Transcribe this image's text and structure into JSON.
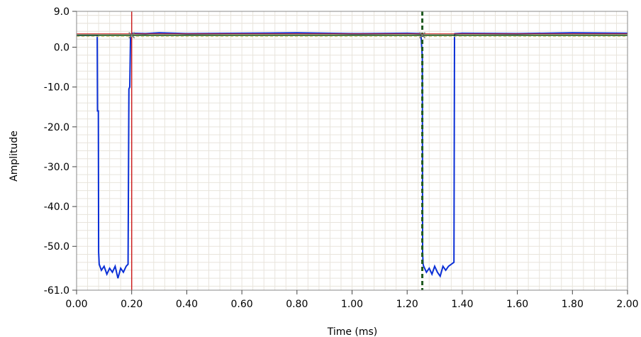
{
  "chart_data": {
    "type": "line",
    "title": "",
    "xlabel": "Time (ms)",
    "ylabel": "Amplitude",
    "xlim": [
      0.0,
      2.0
    ],
    "ylim": [
      -61.0,
      9.0
    ],
    "x_ticks": [
      "0.00",
      "0.20",
      "0.40",
      "0.60",
      "0.80",
      "1.00",
      "1.20",
      "1.40",
      "1.60",
      "1.80",
      "2.00"
    ],
    "x_tick_values": [
      0.0,
      0.2,
      0.4,
      0.6,
      0.8,
      1.0,
      1.2,
      1.4,
      1.6,
      1.8,
      2.0
    ],
    "y_ticks": [
      "9.0",
      "0.0",
      "-10.0",
      "-20.0",
      "-30.0",
      "-40.0",
      "-50.0",
      "-61.0"
    ],
    "y_tick_values": [
      9.0,
      0.0,
      -10.0,
      -20.0,
      -30.0,
      -40.0,
      -50.0,
      -61.0
    ],
    "grid": true,
    "grid_color": "#e8e4dc",
    "background": "#ffffff",
    "series": [
      {
        "color": "#0a2fd6",
        "x": [
          0.0,
          0.075,
          0.076,
          0.079,
          0.08,
          0.082,
          0.09,
          0.1,
          0.11,
          0.12,
          0.13,
          0.14,
          0.15,
          0.16,
          0.17,
          0.18,
          0.187,
          0.19,
          0.193,
          0.196,
          0.2,
          0.25,
          0.3,
          0.4,
          0.6,
          0.8,
          1.0,
          1.2,
          1.25,
          1.255,
          1.256,
          1.258,
          1.26,
          1.27,
          1.28,
          1.29,
          1.3,
          1.31,
          1.32,
          1.33,
          1.34,
          1.35,
          1.36,
          1.37,
          1.372,
          1.373,
          1.4,
          1.6,
          1.8,
          2.0
        ],
        "y": [
          3.0,
          3.0,
          -16.0,
          -16.0,
          -51.5,
          -54.5,
          -56.0,
          -55.0,
          -57.0,
          -55.5,
          -56.5,
          -55.0,
          -58.0,
          -55.5,
          -56.5,
          -55.0,
          -54.5,
          -10.5,
          -10.0,
          3.0,
          3.5,
          3.4,
          3.6,
          3.4,
          3.5,
          3.6,
          3.4,
          3.5,
          3.4,
          -2.5,
          -51.5,
          -54.5,
          -55.0,
          -56.5,
          -55.5,
          -57.0,
          -55.0,
          -56.5,
          -57.5,
          -55.0,
          -56.0,
          -55.0,
          -54.5,
          -54.0,
          3.0,
          3.4,
          3.5,
          3.4,
          3.6,
          3.5
        ]
      }
    ],
    "cursors": [
      {
        "x": 0.2,
        "y": 3.0,
        "color": "#cc2222",
        "style": "solid"
      },
      {
        "x": 1.255,
        "y": 3.0,
        "color": "#1f5a1f",
        "style": "dashed"
      }
    ]
  }
}
